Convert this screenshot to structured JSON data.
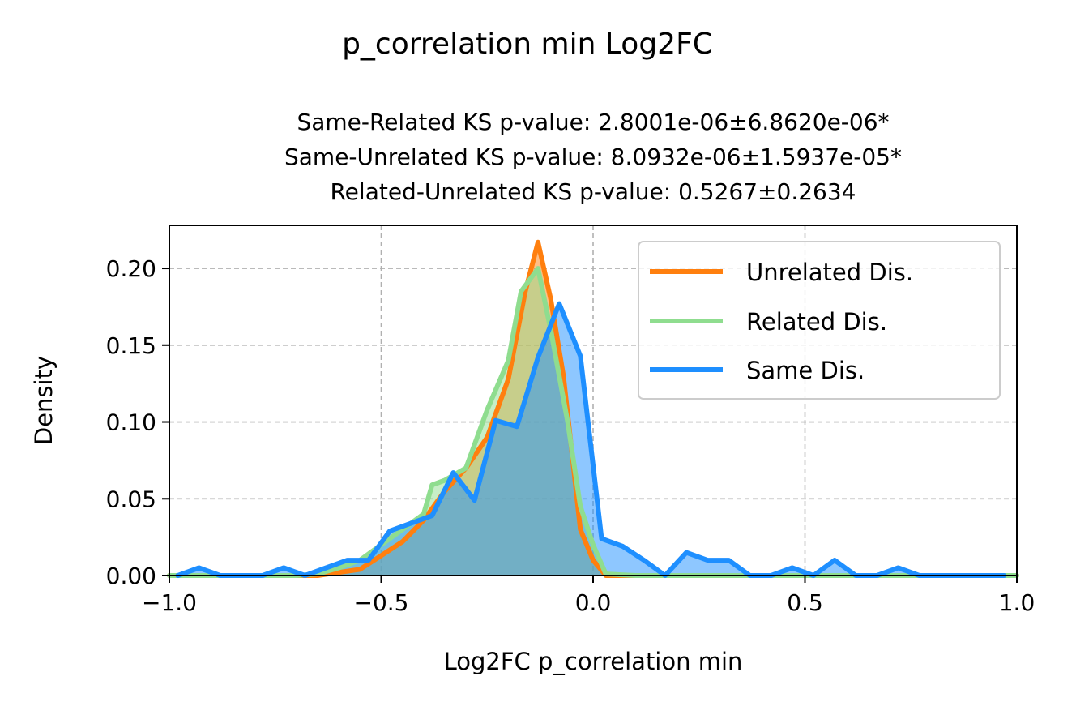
{
  "figure": {
    "suptitle": "p_correlation min Log2FC",
    "subtitle_lines": [
      "Same-Related KS p-value: 2.8001e-06±6.8620e-06*",
      "Same-Unrelated KS p-value: 8.0932e-06±1.5937e-05*",
      "Related-Unrelated KS p-value: 0.5267±0.2634"
    ]
  },
  "chart_data": {
    "type": "area",
    "xlabel": "Log2FC p_correlation min",
    "ylabel": "Density",
    "xlim": [
      -1.0,
      1.0
    ],
    "ylim": [
      0.0,
      0.228
    ],
    "xticks": [
      -1.0,
      -0.5,
      0.0,
      0.5,
      1.0
    ],
    "xtick_labels": [
      "−1.0",
      "−0.5",
      "0.0",
      "0.5",
      "1.0"
    ],
    "yticks": [
      0.0,
      0.05,
      0.1,
      0.15,
      0.2
    ],
    "ytick_labels": [
      "0.00",
      "0.05",
      "0.10",
      "0.15",
      "0.20"
    ],
    "grid": true,
    "legend_position": "upper right",
    "series": [
      {
        "name": "Unrelated Dis.",
        "color": "#ff7f0e",
        "fill": "#ff7f0e",
        "points": [
          [
            -1.0,
            0.0
          ],
          [
            -0.95,
            0.0
          ],
          [
            -0.9,
            0.0
          ],
          [
            -0.85,
            0.0
          ],
          [
            -0.8,
            0.0
          ],
          [
            -0.75,
            0.0
          ],
          [
            -0.7,
            0.0
          ],
          [
            -0.65,
            0.0
          ],
          [
            -0.6,
            0.002
          ],
          [
            -0.55,
            0.004
          ],
          [
            -0.5,
            0.013
          ],
          [
            -0.45,
            0.022
          ],
          [
            -0.4,
            0.036
          ],
          [
            -0.35,
            0.055
          ],
          [
            -0.3,
            0.07
          ],
          [
            -0.25,
            0.09
          ],
          [
            -0.2,
            0.128
          ],
          [
            -0.16,
            0.185
          ],
          [
            -0.13,
            0.217
          ],
          [
            -0.1,
            0.18
          ],
          [
            -0.07,
            0.13
          ],
          [
            -0.03,
            0.03
          ],
          [
            0.0,
            0.01
          ],
          [
            0.03,
            0.0
          ],
          [
            0.1,
            0.0
          ],
          [
            0.2,
            0.0
          ],
          [
            0.5,
            0.0
          ],
          [
            1.0,
            0.0
          ]
        ]
      },
      {
        "name": "Related Dis.",
        "color": "#8fdd8f",
        "fill": "#8fdd8f",
        "points": [
          [
            -1.0,
            0.0
          ],
          [
            -0.95,
            0.0
          ],
          [
            -0.9,
            0.0
          ],
          [
            -0.85,
            0.0
          ],
          [
            -0.8,
            0.0
          ],
          [
            -0.75,
            0.0
          ],
          [
            -0.7,
            0.0
          ],
          [
            -0.65,
            0.001
          ],
          [
            -0.6,
            0.005
          ],
          [
            -0.55,
            0.01
          ],
          [
            -0.5,
            0.02
          ],
          [
            -0.45,
            0.03
          ],
          [
            -0.4,
            0.04
          ],
          [
            -0.38,
            0.059
          ],
          [
            -0.35,
            0.062
          ],
          [
            -0.3,
            0.07
          ],
          [
            -0.25,
            0.108
          ],
          [
            -0.2,
            0.14
          ],
          [
            -0.17,
            0.185
          ],
          [
            -0.13,
            0.2
          ],
          [
            -0.1,
            0.16
          ],
          [
            -0.06,
            0.1
          ],
          [
            -0.03,
            0.045
          ],
          [
            0.0,
            0.02
          ],
          [
            0.03,
            0.001
          ],
          [
            0.1,
            0.0
          ],
          [
            0.5,
            0.0
          ],
          [
            1.0,
            0.0
          ]
        ]
      },
      {
        "name": "Same Dis.",
        "color": "#1e8fff",
        "fill": "#1e8fff",
        "points": [
          [
            -0.98,
            0.0
          ],
          [
            -0.93,
            0.005
          ],
          [
            -0.88,
            0.0
          ],
          [
            -0.83,
            0.0
          ],
          [
            -0.78,
            0.0
          ],
          [
            -0.73,
            0.005
          ],
          [
            -0.68,
            0.0
          ],
          [
            -0.63,
            0.005
          ],
          [
            -0.58,
            0.01
          ],
          [
            -0.53,
            0.01
          ],
          [
            -0.48,
            0.029
          ],
          [
            -0.43,
            0.034
          ],
          [
            -0.38,
            0.039
          ],
          [
            -0.33,
            0.067
          ],
          [
            -0.28,
            0.049
          ],
          [
            -0.23,
            0.101
          ],
          [
            -0.18,
            0.097
          ],
          [
            -0.13,
            0.142
          ],
          [
            -0.08,
            0.177
          ],
          [
            -0.03,
            0.143
          ],
          [
            0.02,
            0.024
          ],
          [
            0.07,
            0.019
          ],
          [
            0.12,
            0.01
          ],
          [
            0.17,
            0.0
          ],
          [
            0.22,
            0.015
          ],
          [
            0.27,
            0.01
          ],
          [
            0.32,
            0.01
          ],
          [
            0.37,
            0.0
          ],
          [
            0.42,
            0.0
          ],
          [
            0.47,
            0.005
          ],
          [
            0.52,
            0.0
          ],
          [
            0.57,
            0.01
          ],
          [
            0.62,
            0.0
          ],
          [
            0.67,
            0.0
          ],
          [
            0.72,
            0.005
          ],
          [
            0.77,
            0.0
          ],
          [
            0.82,
            0.0
          ],
          [
            0.87,
            0.0
          ],
          [
            0.92,
            0.0
          ],
          [
            0.97,
            0.0
          ]
        ]
      }
    ]
  }
}
